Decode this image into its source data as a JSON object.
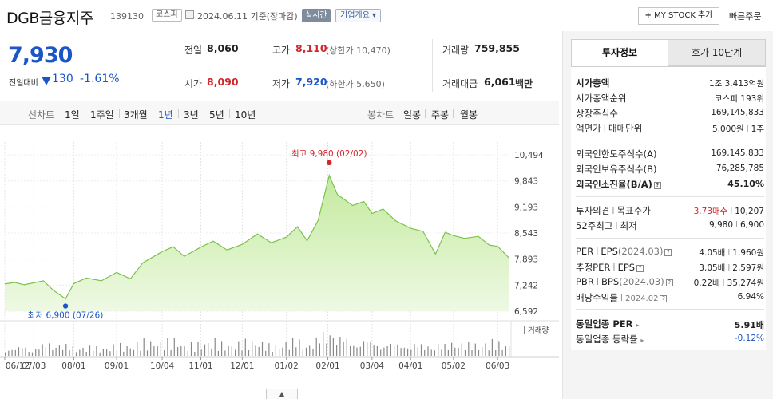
{
  "header": {
    "name": "DGB금융지주",
    "code": "139130",
    "market_tag": "코스피",
    "date_text": "2024.06.11 기준(장마감)",
    "realtime_label": "실시간",
    "company_label": "기업개요 ▾",
    "mystock_label": "MY STOCK 추가",
    "quick_order_label": "빠른주문"
  },
  "summary": {
    "price": "7,930",
    "change_label": "전일대비",
    "change_amount": "130",
    "change_rate": "-1.61%",
    "prev_close_label": "전일",
    "prev_close": "8,060",
    "open_label": "시가",
    "open": "8,090",
    "high_label": "고가",
    "high": "8,110",
    "upper_limit": "(상한가 10,470)",
    "low_label": "저가",
    "low": "7,920",
    "lower_limit": "(하한가 5,650)",
    "volume_label": "거래량",
    "volume": "759,855",
    "amount_label": "거래대금",
    "amount": "6,061",
    "amount_unit": "백만"
  },
  "period_bar": {
    "line_label": "선차트",
    "line_items": [
      "1일",
      "1주일",
      "3개월",
      "1년",
      "3년",
      "5년",
      "10년"
    ],
    "selected": "1년",
    "candle_label": "봉차트",
    "candle_items": [
      "일봉",
      "주봉",
      "월봉"
    ]
  },
  "chart_data": {
    "type": "area",
    "x_ticks": [
      "06/12",
      "07/03",
      "08/01",
      "09/01",
      "10/04",
      "11/01",
      "12/01",
      "01/02",
      "02/01",
      "03/04",
      "04/01",
      "05/02",
      "06/03"
    ],
    "y_ticks": [
      "10,494",
      "9,843",
      "9,193",
      "8,543",
      "7,893",
      "7,242",
      "6,592"
    ],
    "ylim": [
      6592,
      10494
    ],
    "x": [
      "2023-06-12",
      "2023-06-19",
      "2023-06-26",
      "2023-07-03",
      "2023-07-10",
      "2023-07-17",
      "2023-07-26",
      "2023-08-01",
      "2023-08-10",
      "2023-08-21",
      "2023-09-01",
      "2023-09-11",
      "2023-09-20",
      "2023-10-04",
      "2023-10-12",
      "2023-10-20",
      "2023-11-01",
      "2023-11-10",
      "2023-11-20",
      "2023-12-01",
      "2023-12-12",
      "2023-12-22",
      "2024-01-02",
      "2024-01-10",
      "2024-01-17",
      "2024-01-25",
      "2024-02-02",
      "2024-02-08",
      "2024-02-19",
      "2024-02-27",
      "2024-03-04",
      "2024-03-12",
      "2024-03-21",
      "2024-04-01",
      "2024-04-10",
      "2024-04-19",
      "2024-04-26",
      "2024-05-02",
      "2024-05-10",
      "2024-05-20",
      "2024-05-28",
      "2024-06-03",
      "2024-06-11"
    ],
    "values": [
      7270,
      7310,
      7250,
      7300,
      7350,
      7120,
      6900,
      7280,
      7420,
      7350,
      7560,
      7400,
      7800,
      8080,
      8200,
      7960,
      8190,
      8340,
      8120,
      8260,
      8520,
      8300,
      8440,
      8700,
      8350,
      8860,
      9980,
      9500,
      9230,
      9330,
      9030,
      9140,
      8850,
      8660,
      8580,
      8020,
      8560,
      8480,
      8410,
      8460,
      8240,
      8210,
      7930
    ],
    "volume_label": "거래량",
    "volume": [
      1.9,
      1.6,
      2.3,
      1.7,
      2.4,
      3.1,
      2.2,
      1.8,
      2.0,
      1.6,
      2.1,
      1.9,
      2.7,
      2.5,
      3.0,
      1.9,
      2.3,
      2.8,
      1.9,
      2.6,
      2.9,
      1.8,
      2.8,
      3.3,
      2.3,
      3.7,
      6.2,
      4.1,
      3.2,
      3.6,
      2.9,
      3.1,
      2.5,
      2.7,
      2.2,
      2.6,
      2.1,
      3.0,
      2.4,
      2.2,
      2.8,
      2.5,
      2.0
    ],
    "max_label": "최고 9,980 (02/02)",
    "min_label": "최저 6,900 (07/26)",
    "colors": {
      "line": "#7bc34c",
      "fill_top": "#c3ea9d",
      "fill_bottom": "#eef9e4",
      "max": "#d2262d",
      "min": "#1a56c8",
      "volume": "#888888"
    }
  },
  "invest": {
    "tab_active": "투자정보",
    "tab_other": "호가 10단계",
    "market_cap_label": "시가총액",
    "market_cap": "1조 3,413억원",
    "market_cap_rank_label": "시가총액순위",
    "market_cap_rank": "코스피 193위",
    "shares_label": "상장주식수",
    "shares": "169,145,833",
    "par_label": "액면가",
    "par_sep": "l",
    "unit_label": "매매단위",
    "par_value": "5,000원",
    "unit_value": "1주",
    "foreign_limit_label": "외국인한도주식수(A)",
    "foreign_limit": "169,145,833",
    "foreign_hold_label": "외국인보유주식수(B)",
    "foreign_hold": "76,285,785",
    "foreign_ratio_label": "외국인소진율(B/A)",
    "foreign_ratio": "45.10%",
    "opinion_label": "투자의견",
    "target_label": "목표주가",
    "opinion_value": "3.73매수",
    "target_value": "10,207",
    "w52_high_label": "52주최고",
    "w52_low_label": "최저",
    "w52_high": "9,980",
    "w52_low": "6,900",
    "per_label": "PER",
    "eps_label": "EPS",
    "eps_period": "(2024.03)",
    "per_value": "4.05배",
    "eps_value": "1,960원",
    "est_per_label": "추정PER",
    "est_eps_label": "EPS",
    "est_per_value": "3.05배",
    "est_eps_value": "2,597원",
    "pbr_label": "PBR",
    "bps_label": "BPS",
    "bps_period": "(2024.03)",
    "pbr_value": "0.22배",
    "bps_value": "35,274원",
    "div_label": "배당수익률",
    "div_period": "2024.02",
    "div_value": "6.94%",
    "sector_per_label": "동일업종 PER",
    "sector_per": "5.91배",
    "sector_rate_label": "동일업종 등락률",
    "sector_rate": "-0.12%"
  }
}
